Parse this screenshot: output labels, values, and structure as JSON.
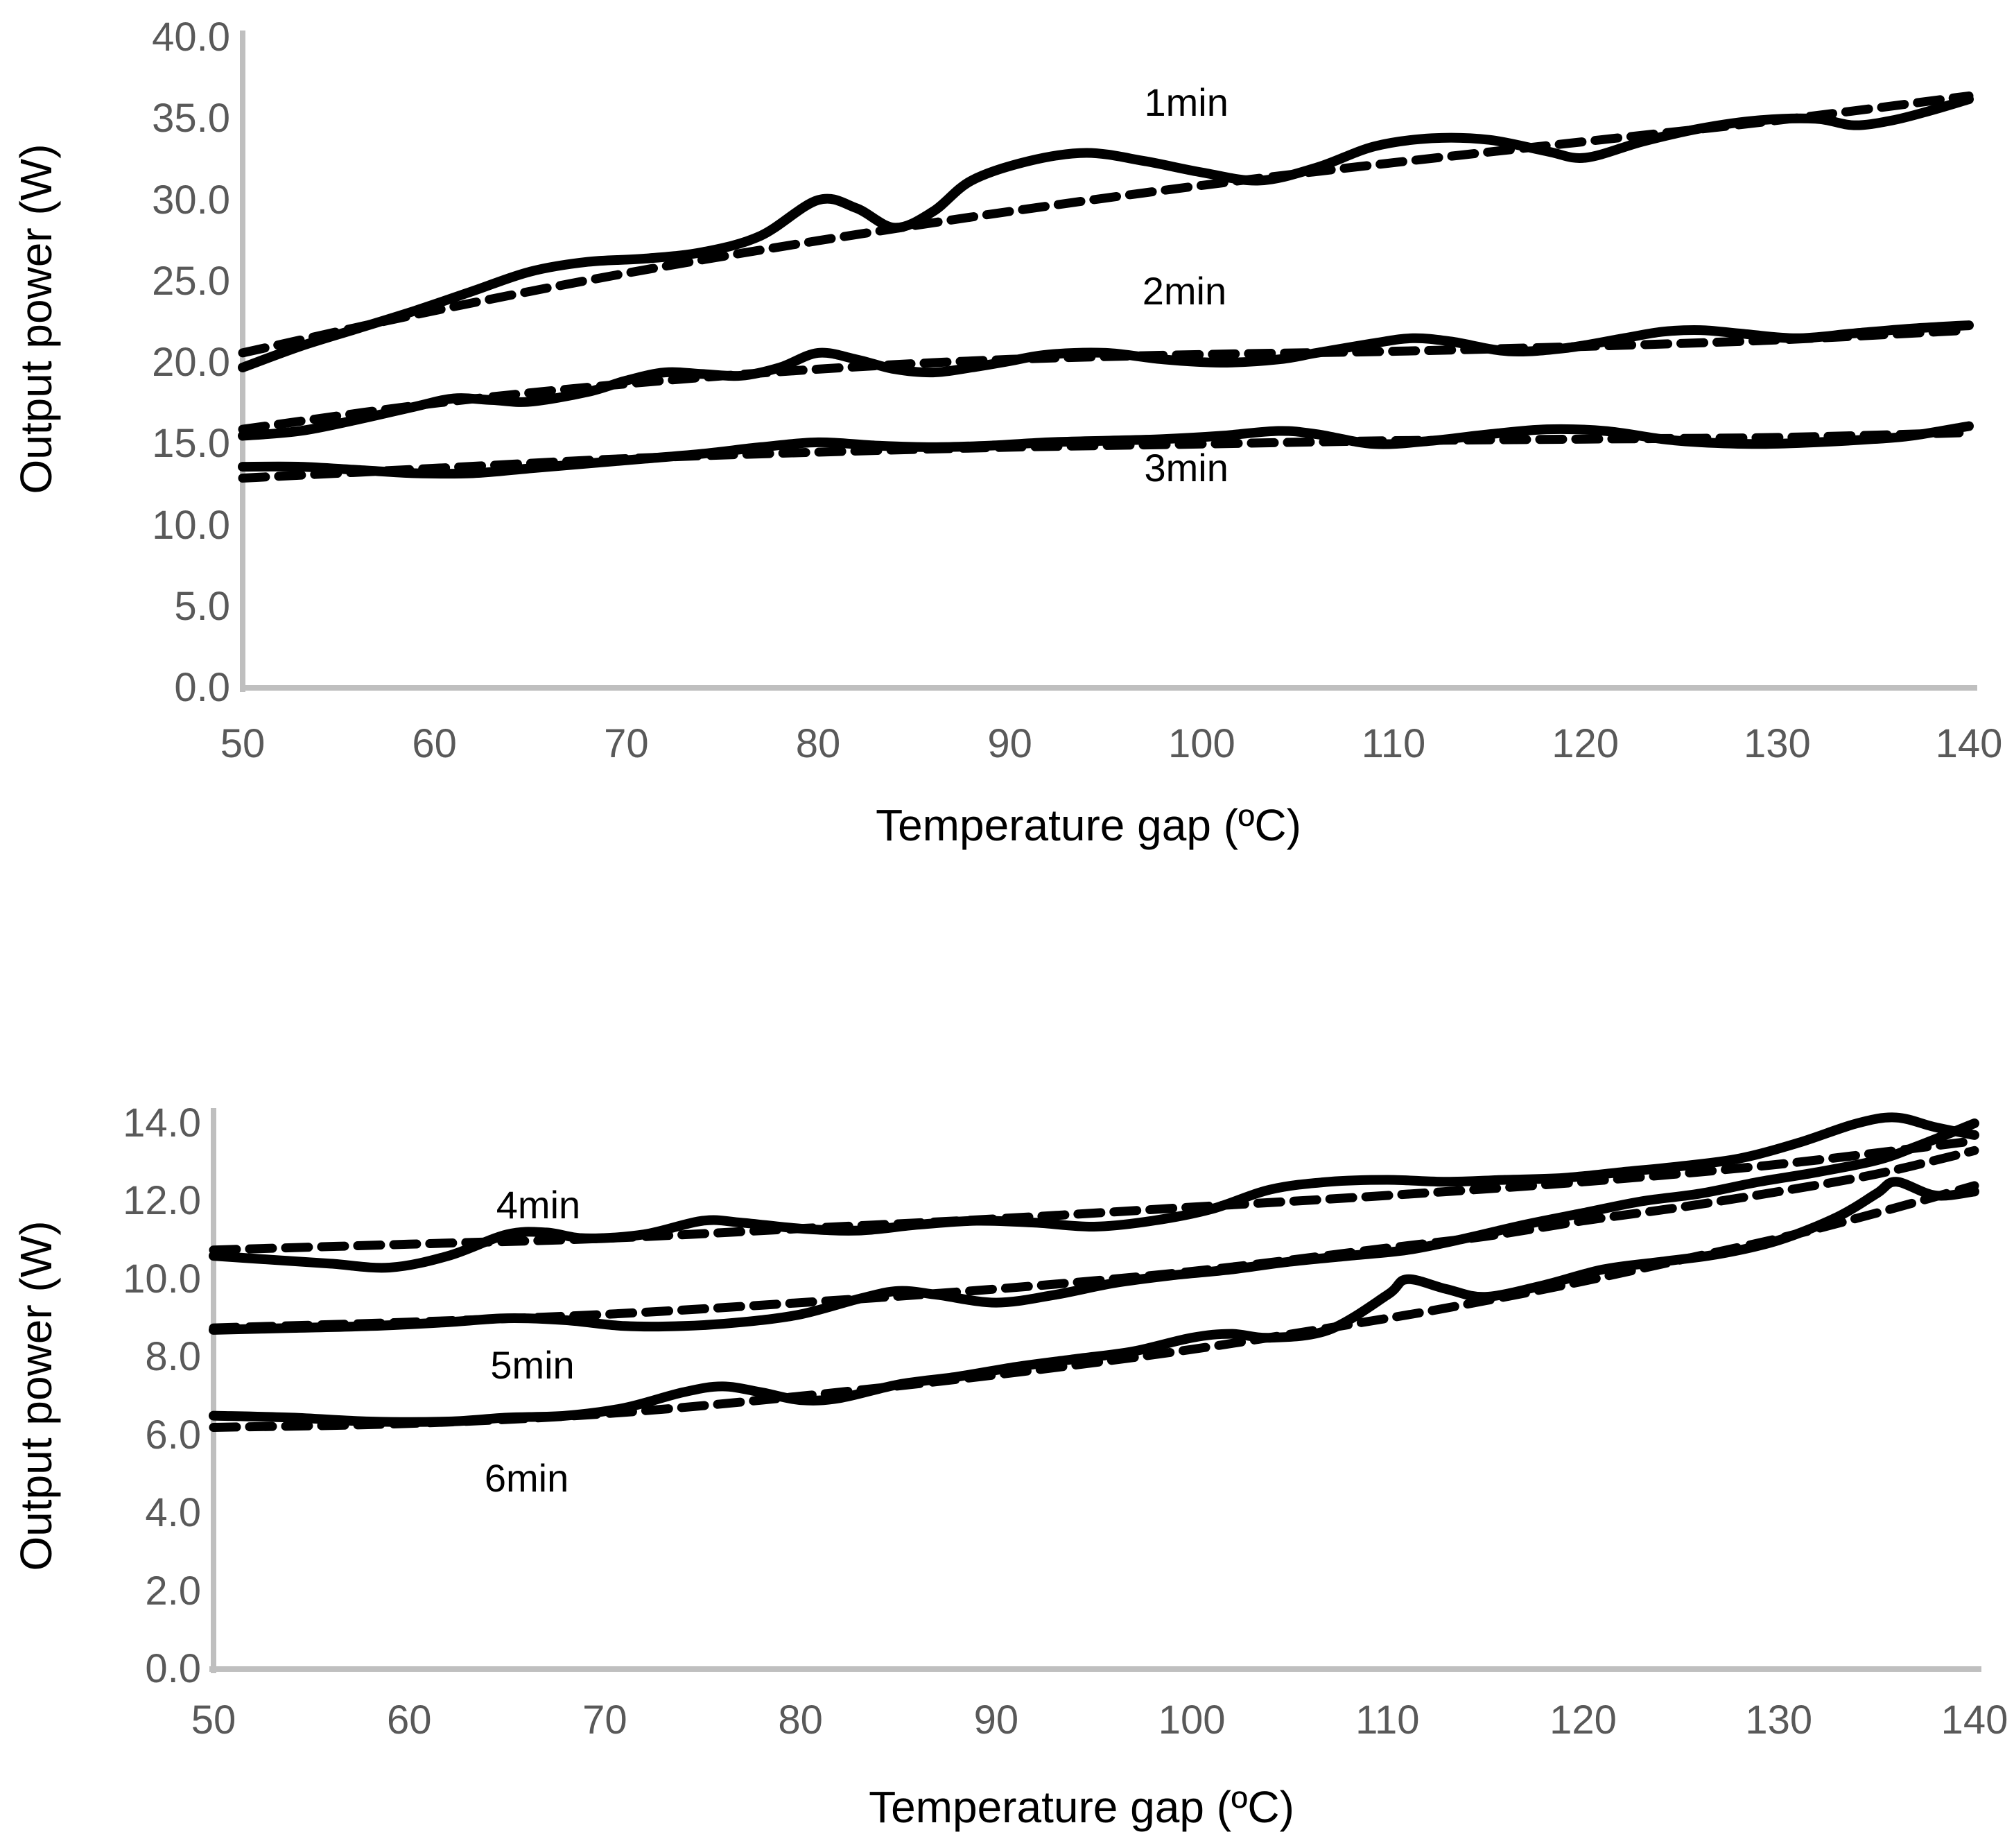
{
  "styles": {
    "curve_color": "#000000",
    "axis_line_color": "#bfbfbf",
    "tick_label_color": "#595959"
  },
  "chart_data": [
    {
      "type": "line",
      "position": "top",
      "y_axis": {
        "title": "Output power (W)",
        "min": 0,
        "max": 40,
        "tick_labels": [
          "0.0",
          "5.0",
          "10.0",
          "15.0",
          "20.0",
          "25.0",
          "30.0",
          "35.0",
          "40.0"
        ]
      },
      "x_axis": {
        "title": "Temperature gap (ºC)",
        "min": 50,
        "max": 140,
        "tick_labels": [
          "50",
          "60",
          "70",
          "80",
          "90",
          "100",
          "110",
          "120",
          "130",
          "140"
        ]
      },
      "grid": false,
      "legend": "inline-annotations",
      "series": [
        {
          "name": "1min",
          "label": "1min",
          "label_anchor": {
            "x": 99.2,
            "y": 36.0
          },
          "solid": {
            "x": [
              50,
              53,
              56,
              59,
              62,
              65,
              68,
              71,
              74,
              77,
              80,
              82,
              84,
              86,
              88,
              91,
              94,
              97,
              100,
              103,
              106,
              109,
              112,
              115,
              118,
              120,
              123,
              126,
              129,
              132,
              134,
              136,
              138,
              140
            ],
            "y": [
              19.7,
              21.0,
              22.1,
              23.2,
              24.4,
              25.6,
              26.2,
              26.4,
              26.8,
              27.8,
              30.0,
              29.5,
              28.3,
              29.3,
              31.2,
              32.4,
              32.9,
              32.4,
              31.7,
              31.2,
              32.0,
              33.3,
              33.8,
              33.7,
              33.0,
              32.6,
              33.6,
              34.4,
              34.9,
              35.0,
              34.6,
              34.9,
              35.5,
              36.2
            ]
          },
          "dashed": {
            "x": [
              50,
              60,
              70,
              80,
              90,
              100,
              110,
              120,
              130,
              140
            ],
            "y": [
              20.6,
              23.2,
              25.5,
              27.5,
              29.3,
              30.9,
              32.3,
              33.6,
              34.9,
              36.4
            ]
          }
        },
        {
          "name": "2min",
          "label": "2min",
          "label_anchor": {
            "x": 99.1,
            "y": 24.4
          },
          "solid": {
            "x": [
              50,
              53,
              56,
              59,
              61,
              63,
              65,
              68,
              70,
              72,
              74,
              76,
              78,
              80,
              82,
              84,
              86,
              88,
              90,
              92,
              95,
              98,
              101,
              104,
              106,
              109,
              111,
              113,
              116,
              119,
              122,
              124,
              126,
              128,
              131,
              134,
              137,
              140
            ],
            "y": [
              15.5,
              15.8,
              16.5,
              17.3,
              17.8,
              17.7,
              17.6,
              18.2,
              18.9,
              19.4,
              19.3,
              19.2,
              19.7,
              20.6,
              20.2,
              19.6,
              19.4,
              19.7,
              20.1,
              20.5,
              20.6,
              20.2,
              20.0,
              20.2,
              20.6,
              21.2,
              21.5,
              21.3,
              20.7,
              20.9,
              21.5,
              21.9,
              22.0,
              21.8,
              21.5,
              21.8,
              22.1,
              22.3
            ]
          },
          "dashed": {
            "x": [
              50,
              60,
              70,
              80,
              90,
              100,
              110,
              120,
              130,
              140
            ],
            "y": [
              15.9,
              17.5,
              18.7,
              19.6,
              20.2,
              20.5,
              20.7,
              21.0,
              21.4,
              22.0
            ]
          }
        },
        {
          "name": "3min",
          "label": "3min",
          "label_anchor": {
            "x": 99.2,
            "y": 13.5
          },
          "solid": {
            "x": [
              50,
              53,
              56,
              59,
              62,
              65,
              68,
              71,
              74,
              77,
              80,
              83,
              86,
              89,
              92,
              95,
              98,
              101,
              104,
              106,
              109,
              112,
              115,
              118,
              121,
              124,
              126,
              129,
              132,
              135,
              137,
              140
            ],
            "y": [
              13.6,
              13.6,
              13.4,
              13.2,
              13.2,
              13.5,
              13.8,
              14.1,
              14.4,
              14.8,
              15.1,
              14.9,
              14.8,
              14.9,
              15.1,
              15.2,
              15.3,
              15.5,
              15.8,
              15.6,
              15.0,
              15.2,
              15.6,
              15.9,
              15.8,
              15.3,
              15.1,
              15.0,
              15.1,
              15.3,
              15.5,
              16.1
            ]
          },
          "dashed": {
            "x": [
              50,
              60,
              70,
              80,
              90,
              100,
              110,
              120,
              130,
              140
            ],
            "y": [
              12.9,
              13.5,
              14.1,
              14.5,
              14.8,
              15.0,
              15.2,
              15.3,
              15.4,
              15.7
            ]
          }
        }
      ]
    },
    {
      "type": "line",
      "position": "bottom",
      "y_axis": {
        "title": "Output power (W)",
        "min": 0,
        "max": 14,
        "tick_labels": [
          "0.0",
          "2.0",
          "4.0",
          "6.0",
          "8.0",
          "10.0",
          "12.0",
          "14.0"
        ]
      },
      "x_axis": {
        "title": "Temperature gap (ºC)",
        "min": 50,
        "max": 140,
        "tick_labels": [
          "50",
          "60",
          "70",
          "80",
          "90",
          "100",
          "110",
          "120",
          "130",
          "140"
        ]
      },
      "grid": false,
      "legend": "inline-annotations",
      "series": [
        {
          "name": "4min",
          "label": "4min",
          "label_anchor": {
            "x": 66.6,
            "y": 11.9
          },
          "solid": {
            "x": [
              50,
              53,
              56,
              59,
              62,
              65,
              67,
              69,
              72,
              75,
              77,
              80,
              83,
              86,
              89,
              92,
              95,
              98,
              101,
              104,
              107,
              110,
              113,
              116,
              119,
              122,
              125,
              128,
              131,
              134,
              136,
              138,
              140
            ],
            "y": [
              10.6,
              10.5,
              10.4,
              10.3,
              10.6,
              11.15,
              11.2,
              11.05,
              11.15,
              11.5,
              11.45,
              11.3,
              11.25,
              11.4,
              11.5,
              11.45,
              11.35,
              11.5,
              11.8,
              12.3,
              12.5,
              12.55,
              12.5,
              12.55,
              12.6,
              12.75,
              12.9,
              13.1,
              13.5,
              14.0,
              14.15,
              13.9,
              13.7
            ]
          },
          "dashed": {
            "x": [
              50,
              60,
              70,
              80,
              90,
              100,
              110,
              120,
              130,
              140
            ],
            "y": [
              10.75,
              10.9,
              11.05,
              11.3,
              11.55,
              11.85,
              12.15,
              12.5,
              12.95,
              13.55
            ]
          }
        },
        {
          "name": "5min",
          "label": "5min",
          "label_anchor": {
            "x": 66.3,
            "y": 7.8
          },
          "solid": {
            "x": [
              50,
              54,
              58,
              62,
              65,
              68,
              71,
              74,
              77,
              80,
              83,
              85,
              87,
              90,
              93,
              96,
              99,
              102,
              105,
              108,
              111,
              114,
              117,
              120,
              123,
              126,
              129,
              132,
              135,
              137,
              140
            ],
            "y": [
              8.7,
              8.75,
              8.8,
              8.9,
              9.0,
              8.95,
              8.8,
              8.8,
              8.9,
              9.1,
              9.5,
              9.7,
              9.6,
              9.4,
              9.6,
              9.9,
              10.1,
              10.25,
              10.45,
              10.6,
              10.75,
              11.05,
              11.4,
              11.7,
              12.0,
              12.2,
              12.5,
              12.75,
              13.05,
              13.4,
              14.0
            ]
          },
          "dashed": {
            "x": [
              50,
              60,
              70,
              80,
              90,
              100,
              110,
              115,
              120,
              125,
              130,
              135,
              140
            ],
            "y": [
              8.75,
              8.9,
              9.1,
              9.4,
              9.75,
              10.2,
              10.8,
              11.1,
              11.5,
              11.85,
              12.25,
              12.7,
              13.3
            ]
          }
        },
        {
          "name": "6min",
          "label": "6min",
          "label_anchor": {
            "x": 66.0,
            "y": 4.9
          },
          "solid": {
            "x": [
              50,
              54,
              58,
              62,
              65,
              68,
              71,
              74,
              76,
              78,
              80,
              82,
              85,
              88,
              91,
              94,
              97,
              100,
              102,
              104,
              107,
              110,
              111,
              113,
              115,
              118,
              121,
              124,
              127,
              130,
              133,
              135,
              136,
              138,
              140
            ],
            "y": [
              6.5,
              6.45,
              6.35,
              6.35,
              6.45,
              6.5,
              6.7,
              7.1,
              7.25,
              7.1,
              6.9,
              6.95,
              7.3,
              7.5,
              7.75,
              7.95,
              8.15,
              8.5,
              8.6,
              8.5,
              8.7,
              9.6,
              10.0,
              9.75,
              9.55,
              9.85,
              10.25,
              10.45,
              10.65,
              11.0,
              11.6,
              12.2,
              12.5,
              12.15,
              12.25
            ]
          },
          "dashed": {
            "x": [
              50,
              60,
              70,
              80,
              90,
              100,
              110,
              115,
              120,
              125,
              130,
              135,
              140
            ],
            "y": [
              6.2,
              6.3,
              6.55,
              7.0,
              7.55,
              8.2,
              9.0,
              9.45,
              9.95,
              10.5,
              11.05,
              11.7,
              12.4
            ]
          }
        }
      ]
    }
  ]
}
